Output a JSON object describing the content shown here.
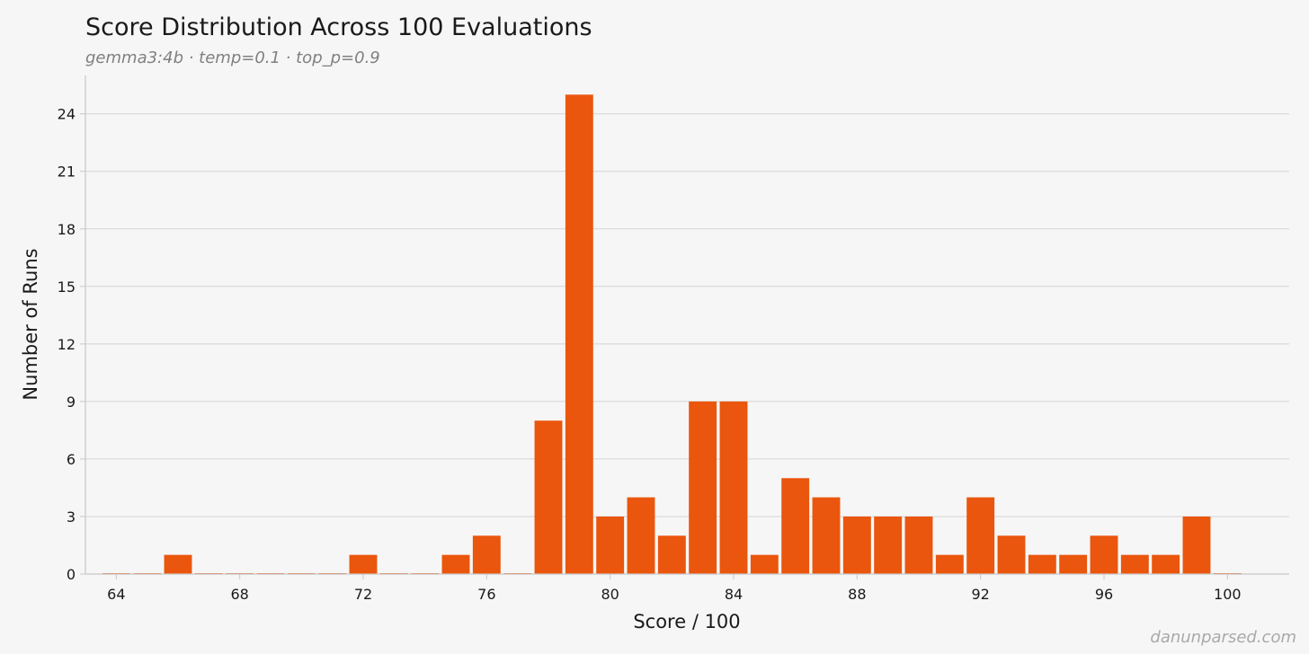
{
  "header": {
    "title": "Score Distribution Across 100 Evaluations",
    "subtitle": "gemma3:4b · temp=0.1 · top_p=0.9"
  },
  "watermark": "danunparsed.com",
  "chart_data": {
    "type": "bar",
    "title": "Score Distribution Across 100 Evaluations",
    "subtitle": "gemma3:4b · temp=0.1 · top_p=0.9",
    "xlabel": "Score / 100",
    "ylabel": "Number of Runs",
    "x": [
      64,
      65,
      66,
      67,
      68,
      69,
      70,
      71,
      72,
      73,
      74,
      75,
      76,
      77,
      78,
      79,
      80,
      81,
      82,
      83,
      84,
      85,
      86,
      87,
      88,
      89,
      90,
      91,
      92,
      93,
      94,
      95,
      96,
      97,
      98,
      99,
      100
    ],
    "values": [
      0,
      0,
      1,
      0,
      0,
      0,
      0,
      0,
      1,
      0,
      0,
      1,
      2,
      0,
      8,
      25,
      3,
      4,
      2,
      9,
      9,
      1,
      5,
      4,
      3,
      3,
      3,
      1,
      4,
      2,
      1,
      1,
      2,
      1,
      1,
      3,
      0
    ],
    "xlim": [
      63,
      102
    ],
    "ylim": [
      0,
      26
    ],
    "xticks": [
      64,
      68,
      72,
      76,
      80,
      84,
      88,
      92,
      96,
      100
    ],
    "yticks": [
      0,
      3,
      6,
      9,
      12,
      15,
      18,
      21,
      24
    ],
    "grid": "horizontal",
    "bar_color": "#ea560d",
    "grid_color": "#d4d4d4",
    "axis_color": "#c8c8c8"
  }
}
